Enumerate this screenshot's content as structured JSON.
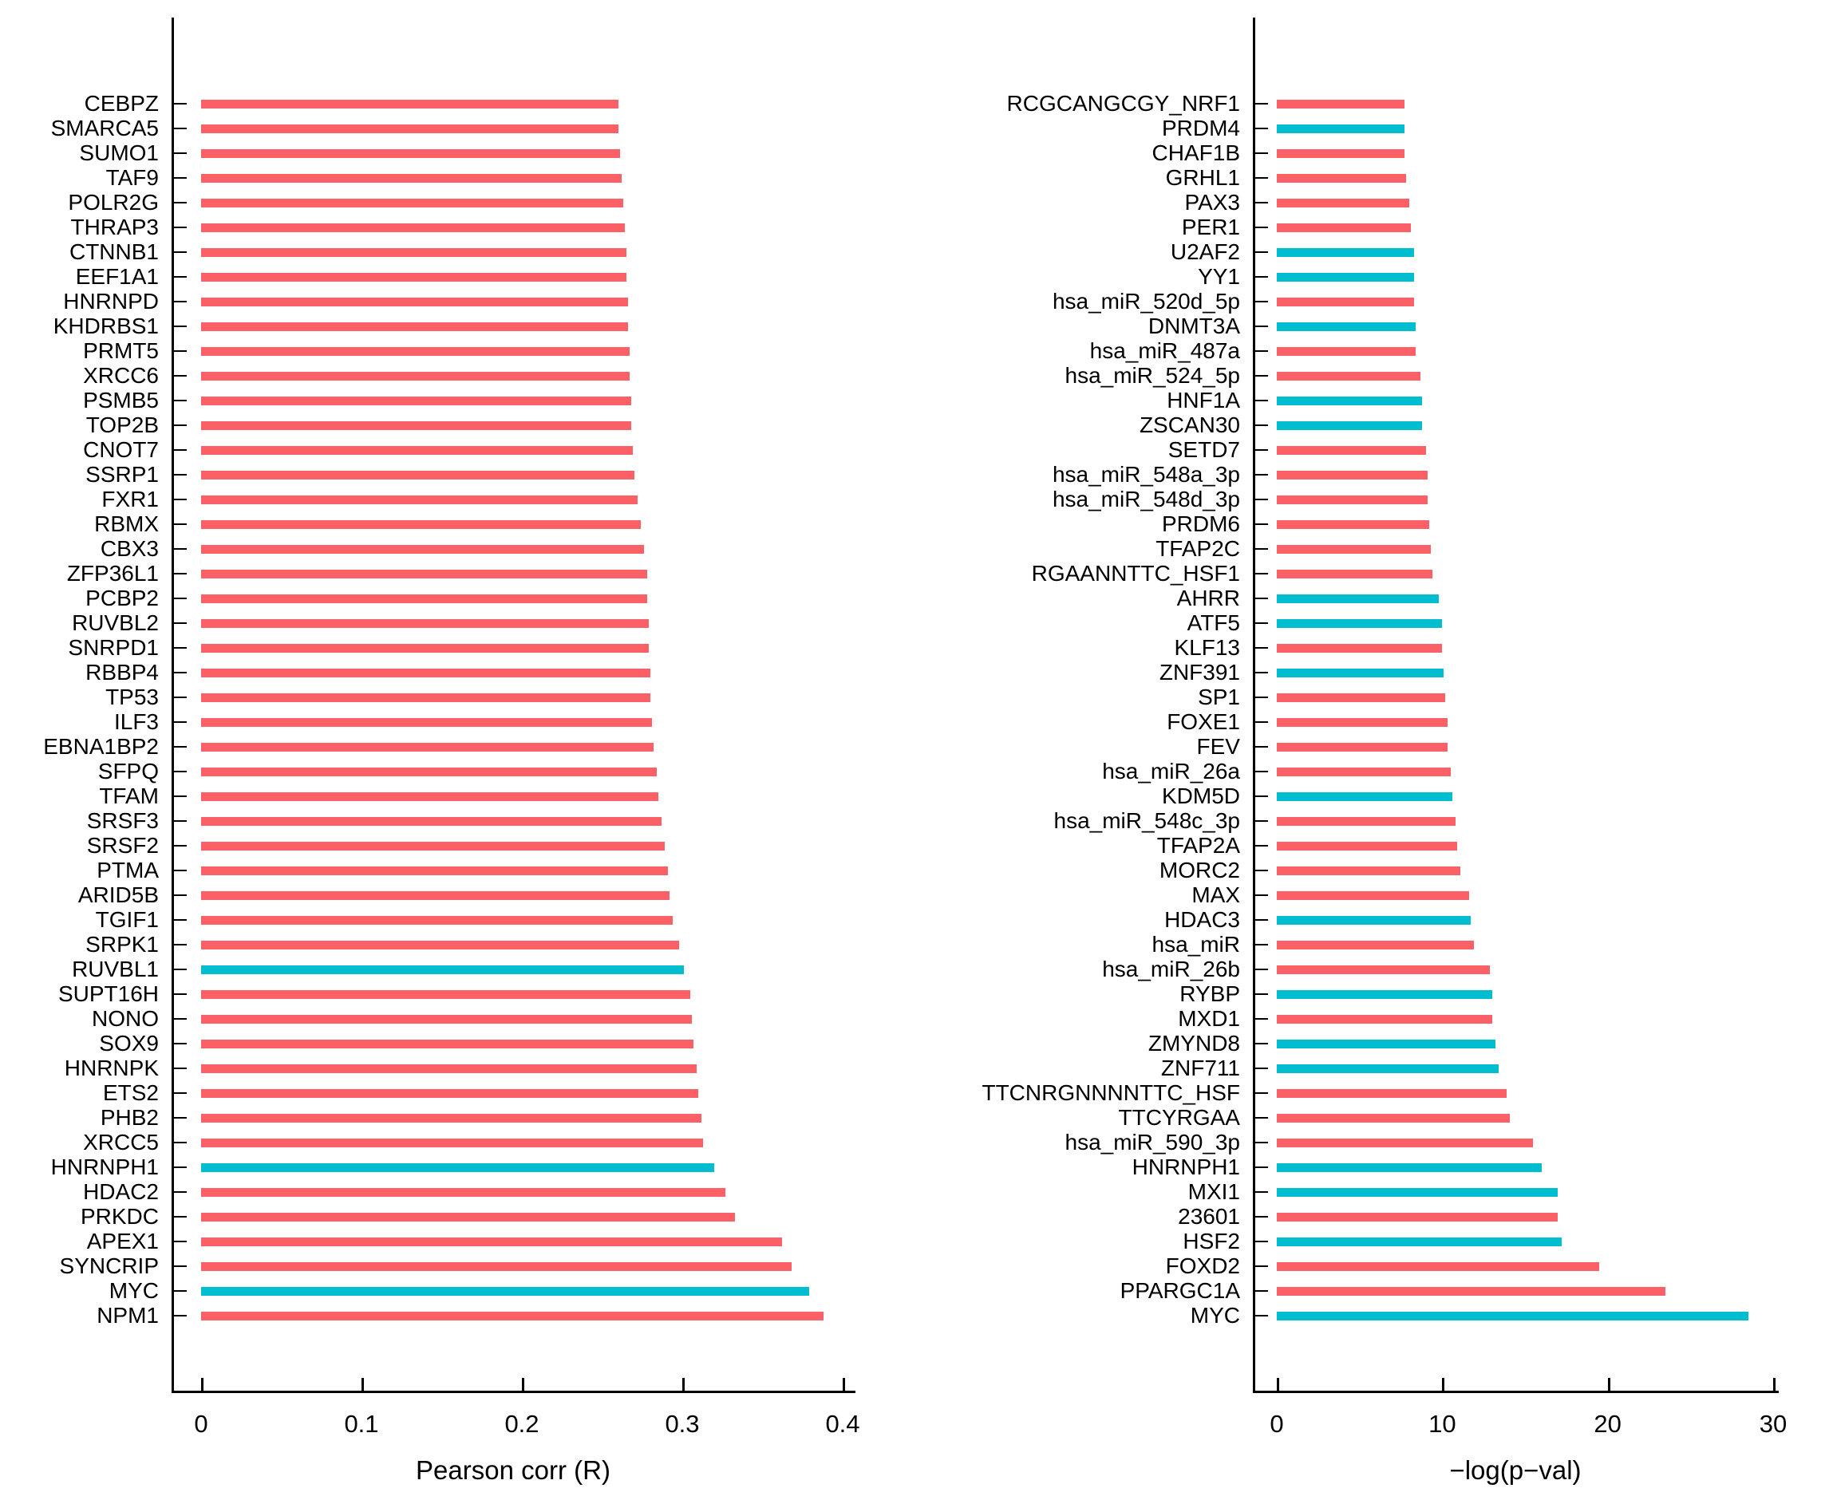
{
  "figure": {
    "background": "#ffffff",
    "axis_color": "#000000",
    "palette": {
      "default_bar": "#FB6066",
      "highlight_bar": "#00BDD0"
    }
  },
  "chart_data": [
    {
      "type": "bar",
      "orientation": "horizontal",
      "title": "",
      "xlabel": "Pearson corr (R)",
      "ylabel": "",
      "grid": false,
      "legend": "none",
      "xlim": [
        0,
        0.42
      ],
      "x_tick_values": [
        0,
        0.1,
        0.2,
        0.3,
        0.4
      ],
      "x_tick_labels": [
        "0",
        "0.1",
        "0.2",
        "0.3",
        "0.4"
      ],
      "categories": [
        "CEBPZ",
        "SMARCA5",
        "SUMO1",
        "TAF9",
        "POLR2G",
        "THRAP3",
        "CTNNB1",
        "EEF1A1",
        "HNRNPD",
        "KHDRBS1",
        "PRMT5",
        "XRCC6",
        "PSMB5",
        "TOP2B",
        "CNOT7",
        "SSRP1",
        "FXR1",
        "RBMX",
        "CBX3",
        "ZFP36L1",
        "PCBP2",
        "RUVBL2",
        "SNRPD1",
        "RBBP4",
        "TP53",
        "ILF3",
        "EBNA1BP2",
        "SFPQ",
        "TFAM",
        "SRSF3",
        "SRSF2",
        "PTMA",
        "ARID5B",
        "TGIF1",
        "SRPK1",
        "RUVBL1",
        "SUPT16H",
        "NONO",
        "SOX9",
        "HNRNPK",
        "ETS2",
        "PHB2",
        "XRCC5",
        "HNRNPH1",
        "HDAC2",
        "PRKDC",
        "APEX1",
        "SYNCRIP",
        "MYC",
        "NPM1"
      ],
      "values": [
        0.26,
        0.26,
        0.261,
        0.262,
        0.263,
        0.264,
        0.265,
        0.265,
        0.266,
        0.266,
        0.267,
        0.267,
        0.268,
        0.268,
        0.269,
        0.27,
        0.272,
        0.274,
        0.276,
        0.278,
        0.278,
        0.279,
        0.279,
        0.28,
        0.28,
        0.281,
        0.282,
        0.284,
        0.285,
        0.287,
        0.289,
        0.291,
        0.292,
        0.294,
        0.298,
        0.301,
        0.305,
        0.306,
        0.307,
        0.309,
        0.31,
        0.312,
        0.313,
        0.32,
        0.327,
        0.333,
        0.362,
        0.368,
        0.379,
        0.388
      ],
      "colors": [
        "#FB6066",
        "#FB6066",
        "#FB6066",
        "#FB6066",
        "#FB6066",
        "#FB6066",
        "#FB6066",
        "#FB6066",
        "#FB6066",
        "#FB6066",
        "#FB6066",
        "#FB6066",
        "#FB6066",
        "#FB6066",
        "#FB6066",
        "#FB6066",
        "#FB6066",
        "#FB6066",
        "#FB6066",
        "#FB6066",
        "#FB6066",
        "#FB6066",
        "#FB6066",
        "#FB6066",
        "#FB6066",
        "#FB6066",
        "#FB6066",
        "#FB6066",
        "#FB6066",
        "#FB6066",
        "#FB6066",
        "#FB6066",
        "#FB6066",
        "#FB6066",
        "#FB6066",
        "#00BDD0",
        "#FB6066",
        "#FB6066",
        "#FB6066",
        "#FB6066",
        "#FB6066",
        "#FB6066",
        "#FB6066",
        "#00BDD0",
        "#FB6066",
        "#FB6066",
        "#FB6066",
        "#FB6066",
        "#00BDD0",
        "#FB6066"
      ]
    },
    {
      "type": "bar",
      "orientation": "horizontal",
      "title": "",
      "xlabel": "−log(p−val)",
      "ylabel": "",
      "grid": false,
      "legend": "none",
      "xlim": [
        0,
        30.5
      ],
      "x_tick_values": [
        0,
        10,
        20,
        30
      ],
      "x_tick_labels": [
        "0",
        "10",
        "20",
        "30"
      ],
      "categories": [
        "RCGCANGCGY_NRF1",
        "PRDM4",
        "CHAF1B",
        "GRHL1",
        "PAX3",
        "PER1",
        "U2AF2",
        "YY1",
        "hsa_miR_520d_5p",
        "DNMT3A",
        "hsa_miR_487a",
        "hsa_miR_524_5p",
        "HNF1A",
        "ZSCAN30",
        "SETD7",
        "hsa_miR_548a_3p",
        "hsa_miR_548d_3p",
        "PRDM6",
        "TFAP2C",
        "RGAANNTTC_HSF1",
        "AHRR",
        "ATF5",
        "KLF13",
        "ZNF391",
        "SP1",
        "FOXE1",
        "FEV",
        "hsa_miR_26a",
        "KDM5D",
        "hsa_miR_548c_3p",
        "TFAP2A",
        "MORC2",
        "MAX",
        "HDAC3",
        "hsa_miR",
        "hsa_miR_26b",
        "RYBP",
        "MXD1",
        "ZMYND8",
        "ZNF711",
        "TTCNRGNNNNTTC_HSF",
        "TTCYRGAA",
        "hsa_miR_590_3p",
        "HNRNPH1",
        "MXI1",
        "23601",
        "HSF2",
        "FOXD2",
        "PPARGC1A",
        "MYC"
      ],
      "values": [
        7.7,
        7.7,
        7.7,
        7.8,
        8.0,
        8.1,
        8.3,
        8.3,
        8.3,
        8.4,
        8.4,
        8.7,
        8.8,
        8.8,
        9.0,
        9.1,
        9.1,
        9.2,
        9.3,
        9.4,
        9.8,
        10.0,
        10.0,
        10.1,
        10.2,
        10.3,
        10.3,
        10.5,
        10.6,
        10.8,
        10.9,
        11.1,
        11.6,
        11.7,
        11.9,
        12.9,
        13.0,
        13.0,
        13.2,
        13.4,
        13.9,
        14.1,
        15.5,
        16.0,
        17.0,
        17.0,
        17.2,
        19.5,
        23.5,
        28.5
      ],
      "colors": [
        "#FB6066",
        "#00BDD0",
        "#FB6066",
        "#FB6066",
        "#FB6066",
        "#FB6066",
        "#00BDD0",
        "#00BDD0",
        "#FB6066",
        "#00BDD0",
        "#FB6066",
        "#FB6066",
        "#00BDD0",
        "#00BDD0",
        "#FB6066",
        "#FB6066",
        "#FB6066",
        "#FB6066",
        "#FB6066",
        "#FB6066",
        "#00BDD0",
        "#00BDD0",
        "#FB6066",
        "#00BDD0",
        "#FB6066",
        "#FB6066",
        "#FB6066",
        "#FB6066",
        "#00BDD0",
        "#FB6066",
        "#FB6066",
        "#FB6066",
        "#FB6066",
        "#00BDD0",
        "#FB6066",
        "#FB6066",
        "#00BDD0",
        "#FB6066",
        "#00BDD0",
        "#00BDD0",
        "#FB6066",
        "#FB6066",
        "#FB6066",
        "#00BDD0",
        "#00BDD0",
        "#FB6066",
        "#00BDD0",
        "#FB6066",
        "#FB6066",
        "#00BDD0"
      ]
    }
  ]
}
